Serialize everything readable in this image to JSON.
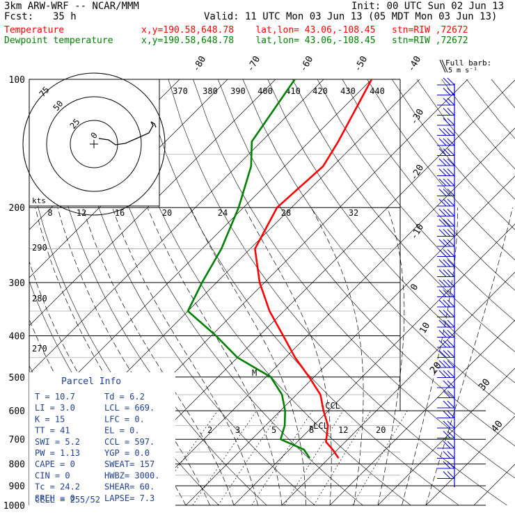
{
  "header": {
    "model": "3km ARW-WRF -- NCAR/MMM",
    "init": "Init: 00 UTC Sun 02 Jun 13",
    "fcst_label": "Fcst:",
    "fcst_value": "35 h",
    "valid": "Valid: 11 UTC Mon 03 Jun 13 (05 MDT Mon 03 Jun 13)",
    "temperature_label": "Temperature",
    "dewpoint_label": "Dewpoint temperature",
    "point_info": "x,y=190.58,648.78    lat,lon= 43.06,-108.45   stn=RIW ,72672",
    "barb_legend": "Full barb:",
    "barb_legend_units": "5 m s⁻¹"
  },
  "chart_data": {
    "type": "line",
    "colors": {
      "temperature": "#ff0000",
      "dewpoint": "#008000",
      "background_lines": "#000000"
    },
    "y_axis": {
      "scale": "log-pressure",
      "units": "hPa",
      "ylim": [
        1000,
        100
      ],
      "ticks": [
        100,
        200,
        300,
        400,
        500,
        600,
        700,
        800,
        900,
        1000
      ]
    },
    "isotherms": {
      "units": "C",
      "labels": [
        -80,
        -70,
        -60,
        -50,
        -40,
        -30,
        -20,
        -10,
        0,
        10,
        20,
        30,
        40
      ]
    },
    "dry_adiabats": {
      "units": "K",
      "labels": [
        270,
        280,
        290
      ]
    },
    "mixing_ratio": {
      "units": "g/kg",
      "labels": [
        2,
        3,
        5,
        8,
        12,
        20
      ]
    },
    "series": [
      {
        "name": "Temperature",
        "x": [
          12,
          9,
          6,
          3,
          -1,
          -5,
          -11,
          -18,
          -25,
          -33,
          -41,
          -49,
          -53,
          -52,
          -54,
          -60
        ],
        "y": [
          775,
          740,
          710,
          650,
          600,
          550,
          500,
          450,
          400,
          350,
          300,
          250,
          200,
          160,
          140,
          100
        ]
      },
      {
        "name": "Dewpoint temperature",
        "x": [
          6,
          3,
          -4,
          -6,
          -9,
          -13,
          -19,
          -30,
          -39,
          -50,
          -53,
          -56,
          -61,
          -67,
          -72,
          -76
        ],
        "y": [
          775,
          740,
          700,
          650,
          600,
          550,
          500,
          450,
          400,
          350,
          300,
          250,
          200,
          160,
          140,
          100
        ]
      }
    ],
    "hodograph": {
      "ring_labels": [
        "0",
        "25",
        "50",
        "75"
      ],
      "speed_units": "kts",
      "speed_labels": [
        "8",
        "12",
        "16",
        "20",
        "24",
        "28",
        "32"
      ],
      "theta_labels": [
        "370",
        "380",
        "390",
        "400",
        "410",
        "420",
        "430",
        "440"
      ]
    },
    "annotations": {
      "lcl": "LCL",
      "ccl": "CCL",
      "m_marker": "M"
    }
  },
  "parcel": {
    "title": "Parcel Info",
    "rows": [
      [
        "T   =   10.7",
        "Td  =    6.2"
      ],
      [
        "LI  =    3.0",
        "LCL =  669."
      ],
      [
        "K   =     15",
        "LFC =     0."
      ],
      [
        "TT  =     41",
        "EL  =     0."
      ],
      [
        "SWI =    5.2",
        "CCL =  597."
      ],
      [
        "PW  =   1.13",
        "YGP =    0.0"
      ],
      [
        "CAPE =     0",
        "SWEAT=   157"
      ],
      [
        "CIN =      0",
        "HWBZ= 3000."
      ],
      [
        "Tc  =   24.2",
        "SHEAR=   60."
      ],
      [
        "SREH =     0",
        "LAPSE=   7.3"
      ]
    ],
    "cell": "CELL = 255/52"
  }
}
